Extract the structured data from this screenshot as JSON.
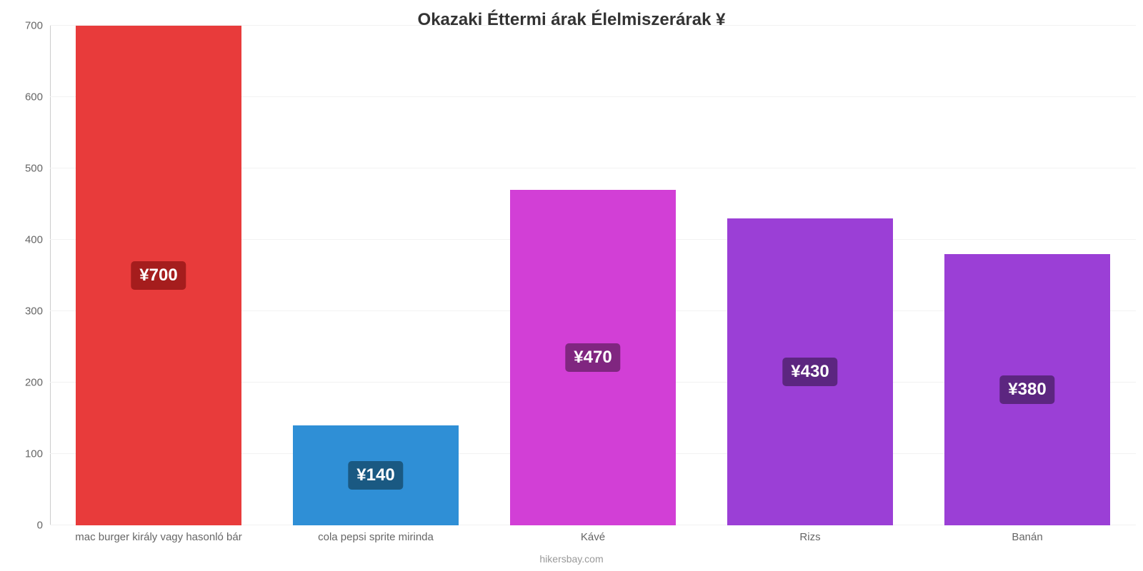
{
  "chart": {
    "type": "bar",
    "title": "Okazaki Éttermi árak Élelmiszerárak ¥",
    "title_fontsize": 24,
    "title_color": "#333333",
    "credit": "hikersbay.com",
    "credit_fontsize": 14,
    "credit_color": "#999999",
    "background_color": "#ffffff",
    "grid_color": "#f2f2f2",
    "axis_line_color": "#cccccc",
    "tick_label_color": "#666666",
    "tick_label_fontsize": 15,
    "x_label_fontsize": 15,
    "value_badge_fontsize": 24,
    "bar_width_ratio": 0.76,
    "ylim": [
      0,
      700
    ],
    "ytick_step": 100,
    "yticks": [
      0,
      100,
      200,
      300,
      400,
      500,
      600,
      700
    ],
    "categories": [
      "mac burger király vagy hasonló bár",
      "cola pepsi sprite mirinda",
      "Kávé",
      "Rizs",
      "Banán"
    ],
    "values": [
      700,
      140,
      470,
      430,
      380
    ],
    "value_labels": [
      "¥700",
      "¥140",
      "¥470",
      "¥430",
      "¥380"
    ],
    "bar_colors": [
      "#e83b3b",
      "#2f8fd6",
      "#d23fd6",
      "#9b3fd6",
      "#9b3fd6"
    ],
    "badge_colors": [
      "#a51d1d",
      "#1a5982",
      "#802680",
      "#5c2680",
      "#5c2680"
    ]
  }
}
